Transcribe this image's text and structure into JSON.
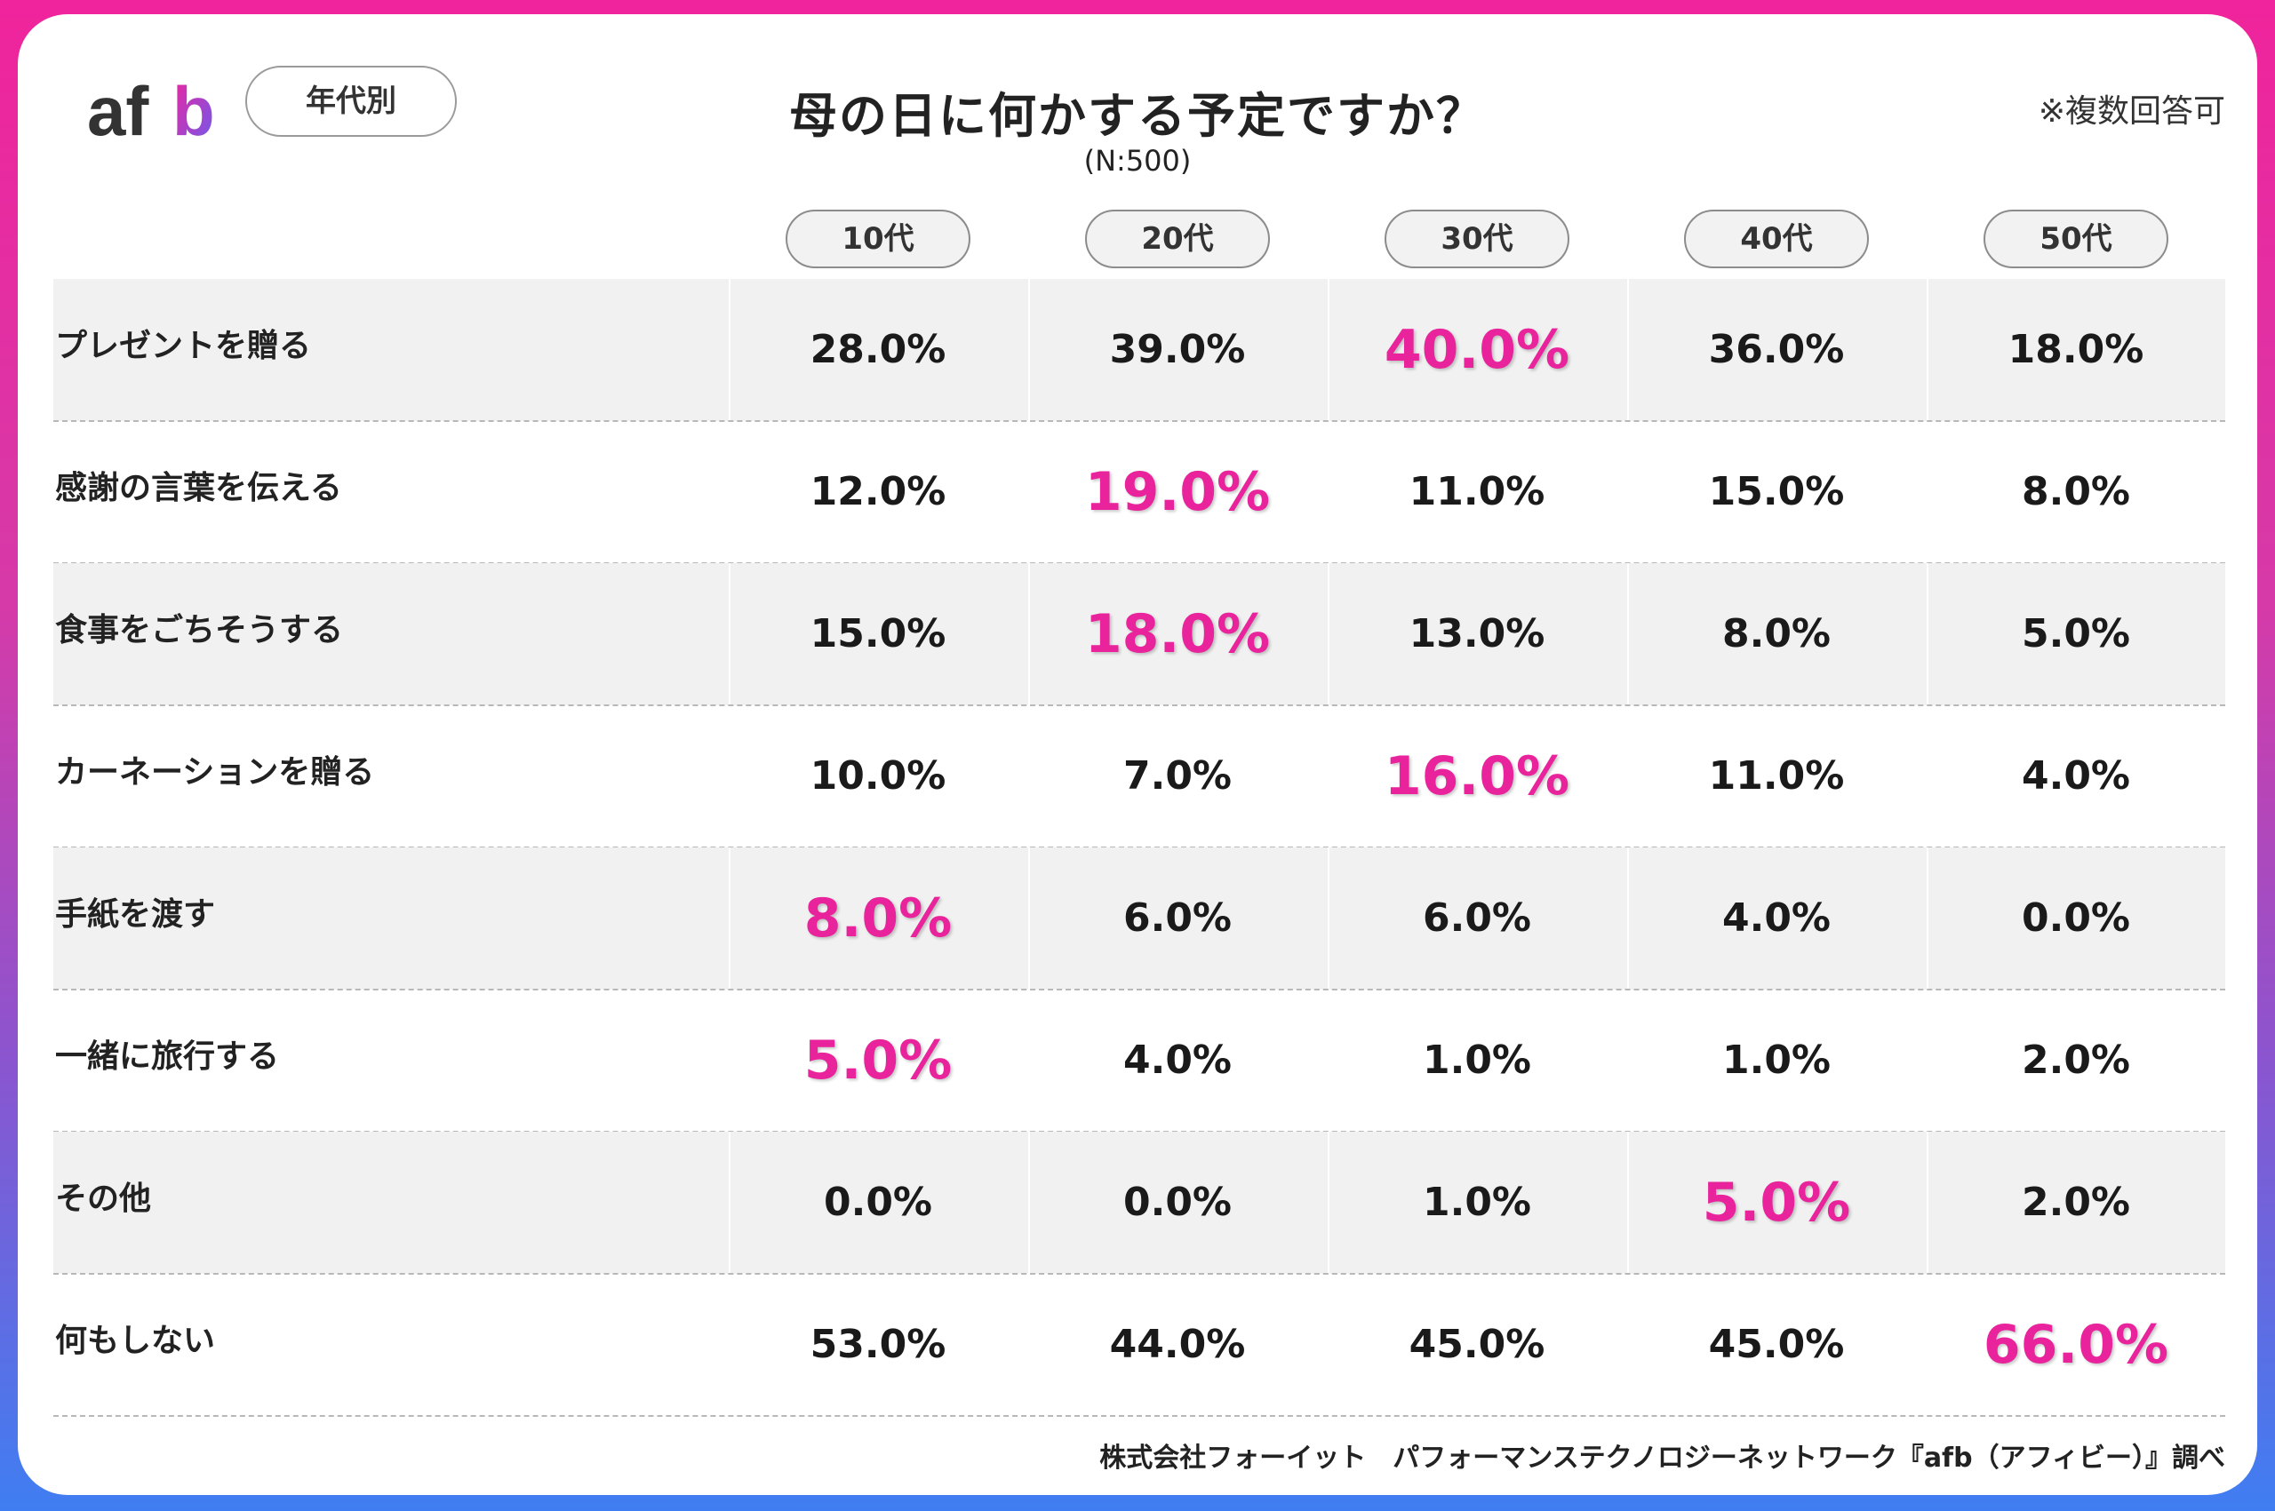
{
  "logo": {
    "text": "afb"
  },
  "filter": {
    "label": "年代別"
  },
  "header": {
    "title": "母の日に何かする予定ですか？",
    "subtitle": "(N:500)",
    "note": "※複数回答可"
  },
  "colors": {
    "highlight": "#e8239b",
    "frame_top": "#f0249c",
    "frame_bottom": "#3f7ef2"
  },
  "footer": {
    "source": "株式会社フォーイット　パフォーマンステクノロジーネットワーク『afb（アフィビー）』調べ"
  },
  "chart_data": {
    "type": "table",
    "title": "母の日に何かする予定ですか？",
    "subtitle": "(N:500)",
    "unit": "%",
    "columns": [
      "10代",
      "20代",
      "30代",
      "40代",
      "50代"
    ],
    "rows": [
      {
        "label": "プレゼントを贈る",
        "values": [
          "28.0%",
          "39.0%",
          "40.0%",
          "36.0%",
          "18.0%"
        ],
        "highlight": 2
      },
      {
        "label": "感謝の言葉を伝える",
        "values": [
          "12.0%",
          "19.0%",
          "11.0%",
          "15.0%",
          "8.0%"
        ],
        "highlight": 1
      },
      {
        "label": "食事をごちそうする",
        "values": [
          "15.0%",
          "18.0%",
          "13.0%",
          "8.0%",
          "5.0%"
        ],
        "highlight": 1
      },
      {
        "label": "カーネーションを贈る",
        "values": [
          "10.0%",
          "7.0%",
          "16.0%",
          "11.0%",
          "4.0%"
        ],
        "highlight": 2
      },
      {
        "label": "手紙を渡す",
        "values": [
          "8.0%",
          "6.0%",
          "6.0%",
          "4.0%",
          "0.0%"
        ],
        "highlight": 0
      },
      {
        "label": "一緒に旅行する",
        "values": [
          "5.0%",
          "4.0%",
          "1.0%",
          "1.0%",
          "2.0%"
        ],
        "highlight": 0
      },
      {
        "label": "その他",
        "values": [
          "0.0%",
          "0.0%",
          "1.0%",
          "5.0%",
          "2.0%"
        ],
        "highlight": 3
      },
      {
        "label": "何もしない",
        "values": [
          "53.0%",
          "44.0%",
          "45.0%",
          "45.0%",
          "66.0%"
        ],
        "highlight": 4
      }
    ]
  }
}
